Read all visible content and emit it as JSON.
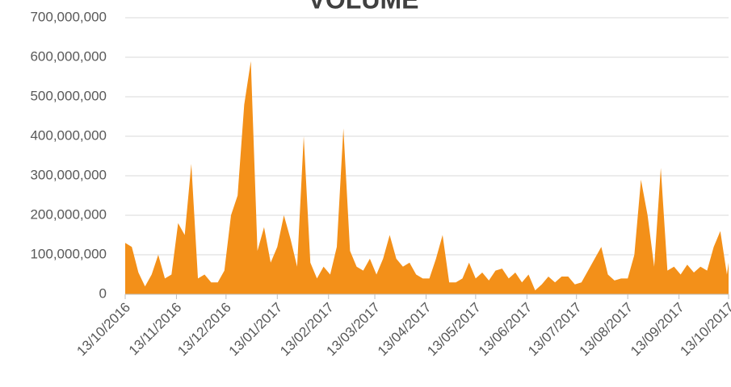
{
  "chart_data": {
    "type": "area",
    "title": "VOLUME",
    "x": [
      "2016-10-13",
      "2016-10-17",
      "2016-10-21",
      "2016-10-25",
      "2016-10-29",
      "2016-11-02",
      "2016-11-06",
      "2016-11-10",
      "2016-11-14",
      "2016-11-18",
      "2016-11-22",
      "2016-11-26",
      "2016-11-30",
      "2016-12-04",
      "2016-12-08",
      "2016-12-12",
      "2016-12-16",
      "2016-12-20",
      "2016-12-24",
      "2016-12-28",
      "2017-01-01",
      "2017-01-05",
      "2017-01-09",
      "2017-01-13",
      "2017-01-17",
      "2017-01-21",
      "2017-01-25",
      "2017-01-29",
      "2017-02-02",
      "2017-02-06",
      "2017-02-10",
      "2017-02-14",
      "2017-02-18",
      "2017-02-22",
      "2017-02-26",
      "2017-03-02",
      "2017-03-06",
      "2017-03-10",
      "2017-03-14",
      "2017-03-18",
      "2017-03-22",
      "2017-03-26",
      "2017-03-30",
      "2017-04-03",
      "2017-04-07",
      "2017-04-11",
      "2017-04-15",
      "2017-04-19",
      "2017-04-23",
      "2017-04-27",
      "2017-05-01",
      "2017-05-05",
      "2017-05-09",
      "2017-05-13",
      "2017-05-17",
      "2017-05-21",
      "2017-05-25",
      "2017-05-29",
      "2017-06-02",
      "2017-06-06",
      "2017-06-10",
      "2017-06-14",
      "2017-06-18",
      "2017-06-22",
      "2017-06-26",
      "2017-06-30",
      "2017-07-04",
      "2017-07-08",
      "2017-07-12",
      "2017-07-16",
      "2017-07-20",
      "2017-07-24",
      "2017-07-28",
      "2017-08-01",
      "2017-08-05",
      "2017-08-09",
      "2017-08-13",
      "2017-08-17",
      "2017-08-21",
      "2017-08-25",
      "2017-08-29",
      "2017-09-02",
      "2017-09-06",
      "2017-09-10",
      "2017-09-14",
      "2017-09-18",
      "2017-09-22",
      "2017-09-26",
      "2017-09-30",
      "2017-10-04",
      "2017-10-08",
      "2017-10-12",
      "2017-10-13"
    ],
    "values": [
      130000000,
      120000000,
      55000000,
      20000000,
      50000000,
      100000000,
      40000000,
      50000000,
      180000000,
      150000000,
      330000000,
      40000000,
      50000000,
      30000000,
      30000000,
      60000000,
      200000000,
      250000000,
      480000000,
      590000000,
      110000000,
      170000000,
      80000000,
      120000000,
      200000000,
      140000000,
      70000000,
      400000000,
      80000000,
      40000000,
      70000000,
      50000000,
      120000000,
      420000000,
      110000000,
      70000000,
      60000000,
      90000000,
      50000000,
      90000000,
      150000000,
      90000000,
      70000000,
      80000000,
      50000000,
      40000000,
      40000000,
      90000000,
      150000000,
      30000000,
      30000000,
      40000000,
      80000000,
      40000000,
      55000000,
      35000000,
      60000000,
      65000000,
      40000000,
      55000000,
      30000000,
      50000000,
      10000000,
      25000000,
      45000000,
      30000000,
      45000000,
      45000000,
      25000000,
      30000000,
      60000000,
      90000000,
      120000000,
      50000000,
      35000000,
      40000000,
      40000000,
      100000000,
      290000000,
      200000000,
      70000000,
      320000000,
      60000000,
      70000000,
      50000000,
      75000000,
      55000000,
      70000000,
      60000000,
      120000000,
      160000000,
      50000000,
      80000000
    ],
    "color": "#f39019",
    "xlim": [
      "2016-10-13",
      "2017-10-13"
    ],
    "xticks": [
      {
        "value": "2016-10-13",
        "label": "13/10/2016"
      },
      {
        "value": "2016-11-13",
        "label": "13/11/2016"
      },
      {
        "value": "2016-12-13",
        "label": "13/12/2016"
      },
      {
        "value": "2017-01-13",
        "label": "13/01/2017"
      },
      {
        "value": "2017-02-13",
        "label": "13/02/2017"
      },
      {
        "value": "2017-03-13",
        "label": "13/03/2017"
      },
      {
        "value": "2017-04-13",
        "label": "13/04/2017"
      },
      {
        "value": "2017-05-13",
        "label": "13/05/2017"
      },
      {
        "value": "2017-06-13",
        "label": "13/06/2017"
      },
      {
        "value": "2017-07-13",
        "label": "13/07/2017"
      },
      {
        "value": "2017-08-13",
        "label": "13/08/2017"
      },
      {
        "value": "2017-09-13",
        "label": "13/09/2017"
      },
      {
        "value": "2017-10-13",
        "label": "13/10/2017"
      }
    ],
    "ylim": [
      0,
      700000000
    ],
    "yticks": [
      0,
      {
        "value": 100000000,
        "label": "100,000,000"
      },
      {
        "value": 200000000,
        "label": "200,000,000"
      },
      {
        "value": 300000000,
        "label": "300,000,000"
      },
      {
        "value": 400000000,
        "label": "400,000,000"
      },
      {
        "value": 500000000,
        "label": "500,000,000"
      },
      {
        "value": 600000000,
        "label": "600,000,000"
      },
      {
        "value": 700000000,
        "label": "700,000,000"
      }
    ],
    "grid": true
  }
}
